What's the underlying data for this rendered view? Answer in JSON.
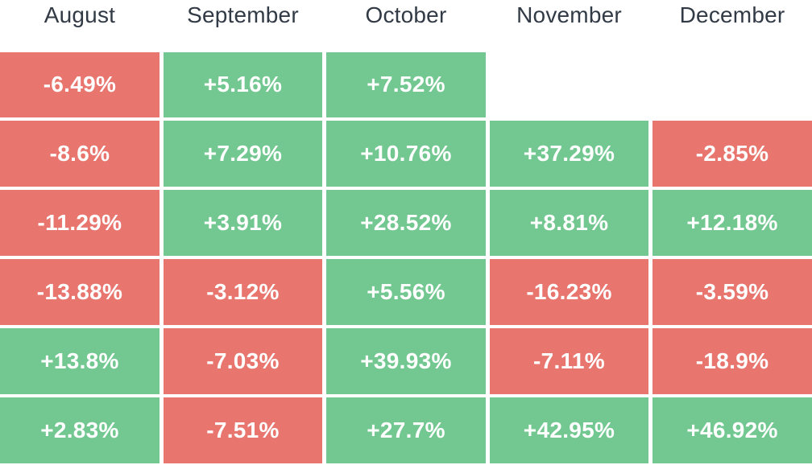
{
  "colors": {
    "positive": "#73C891",
    "negative": "#E8766F",
    "header_text": "#323A45",
    "cell_text": "#FFFFFF",
    "background": "#FFFFFF"
  },
  "chart_data": {
    "type": "heatmap",
    "columns": [
      "August",
      "September",
      "October",
      "November",
      "December"
    ],
    "unit": "%",
    "color_coding": {
      "positive": "green",
      "negative": "red",
      "missing": "blank"
    },
    "grid": "white gaps between cells, no borders, header row on top",
    "rows": [
      {
        "cells": [
          {
            "label": "-6.49%",
            "value": -6.49
          },
          {
            "label": "+5.16%",
            "value": 5.16
          },
          {
            "label": "+7.52%",
            "value": 7.52
          },
          null,
          null
        ]
      },
      {
        "cells": [
          {
            "label": "-8.6%",
            "value": -8.6
          },
          {
            "label": "+7.29%",
            "value": 7.29
          },
          {
            "label": "+10.76%",
            "value": 10.76
          },
          {
            "label": "+37.29%",
            "value": 37.29
          },
          {
            "label": "-2.85%",
            "value": -2.85
          }
        ]
      },
      {
        "cells": [
          {
            "label": "-11.29%",
            "value": -11.29
          },
          {
            "label": "+3.91%",
            "value": 3.91
          },
          {
            "label": "+28.52%",
            "value": 28.52
          },
          {
            "label": "+8.81%",
            "value": 8.81
          },
          {
            "label": "+12.18%",
            "value": 12.18
          }
        ]
      },
      {
        "cells": [
          {
            "label": "-13.88%",
            "value": -13.88
          },
          {
            "label": "-3.12%",
            "value": -3.12
          },
          {
            "label": "+5.56%",
            "value": 5.56
          },
          {
            "label": "-16.23%",
            "value": -16.23
          },
          {
            "label": "-3.59%",
            "value": -3.59
          }
        ]
      },
      {
        "cells": [
          {
            "label": "+13.8%",
            "value": 13.8
          },
          {
            "label": "-7.03%",
            "value": -7.03
          },
          {
            "label": "+39.93%",
            "value": 39.93
          },
          {
            "label": "-7.11%",
            "value": -7.11
          },
          {
            "label": "-18.9%",
            "value": -18.9
          }
        ]
      },
      {
        "cells": [
          {
            "label": "+2.83%",
            "value": 2.83
          },
          {
            "label": "-7.51%",
            "value": -7.51
          },
          {
            "label": "+27.7%",
            "value": 27.7
          },
          {
            "label": "+42.95%",
            "value": 42.95
          },
          {
            "label": "+46.92%",
            "value": 46.92
          }
        ]
      }
    ]
  }
}
